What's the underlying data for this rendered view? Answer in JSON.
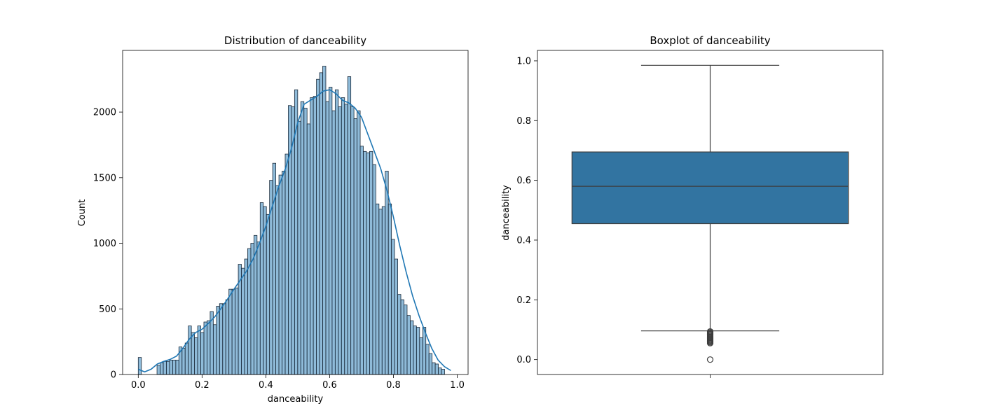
{
  "chart_data": [
    {
      "type": "bar",
      "subtype": "histogram-with-kde",
      "title": "Distribution of danceability",
      "xlabel": "danceability",
      "ylabel": "Count",
      "xlim": [
        -0.049,
        1.034
      ],
      "ylim": [
        0,
        2470
      ],
      "xticks": [
        "0.0",
        "0.2",
        "0.4",
        "0.6",
        "0.8",
        "1.0"
      ],
      "yticks": [
        "0",
        "500",
        "1000",
        "1500",
        "2000"
      ],
      "bin_start": 0.0,
      "bin_width": 0.0098,
      "bar_color": "#1f77b4",
      "values": [
        130,
        0,
        0,
        0,
        0,
        0,
        70,
        90,
        100,
        100,
        110,
        110,
        110,
        210,
        200,
        240,
        370,
        320,
        280,
        370,
        320,
        400,
        410,
        480,
        380,
        520,
        540,
        540,
        570,
        650,
        650,
        660,
        840,
        810,
        880,
        960,
        1000,
        1060,
        1010,
        1310,
        1280,
        1220,
        1480,
        1610,
        1440,
        1520,
        1550,
        1680,
        2050,
        2040,
        2170,
        1930,
        2080,
        2030,
        1910,
        2110,
        2120,
        2250,
        2300,
        2350,
        2080,
        2190,
        2010,
        2170,
        2040,
        2110,
        2060,
        2270,
        2040,
        1950,
        2010,
        1740,
        1700,
        1690,
        1700,
        1600,
        1300,
        1260,
        1280,
        1550,
        1300,
        1030,
        880,
        610,
        570,
        530,
        450,
        410,
        370,
        360,
        280,
        360,
        230,
        160,
        90,
        80,
        50,
        40
      ],
      "kde": [
        [
          0.0,
          40
        ],
        [
          0.02,
          20
        ],
        [
          0.04,
          40
        ],
        [
          0.06,
          80
        ],
        [
          0.08,
          100
        ],
        [
          0.1,
          115
        ],
        [
          0.12,
          140
        ],
        [
          0.14,
          200
        ],
        [
          0.16,
          270
        ],
        [
          0.18,
          320
        ],
        [
          0.2,
          345
        ],
        [
          0.22,
          390
        ],
        [
          0.24,
          440
        ],
        [
          0.26,
          505
        ],
        [
          0.28,
          575
        ],
        [
          0.3,
          650
        ],
        [
          0.32,
          720
        ],
        [
          0.34,
          790
        ],
        [
          0.36,
          880
        ],
        [
          0.38,
          1000
        ],
        [
          0.4,
          1130
        ],
        [
          0.42,
          1280
        ],
        [
          0.44,
          1430
        ],
        [
          0.46,
          1560
        ],
        [
          0.48,
          1720
        ],
        [
          0.5,
          1920
        ],
        [
          0.52,
          2060
        ],
        [
          0.54,
          2090
        ],
        [
          0.56,
          2120
        ],
        [
          0.58,
          2160
        ],
        [
          0.6,
          2170
        ],
        [
          0.62,
          2140
        ],
        [
          0.64,
          2090
        ],
        [
          0.66,
          2070
        ],
        [
          0.68,
          2030
        ],
        [
          0.7,
          1960
        ],
        [
          0.72,
          1830
        ],
        [
          0.74,
          1700
        ],
        [
          0.76,
          1570
        ],
        [
          0.78,
          1400
        ],
        [
          0.8,
          1200
        ],
        [
          0.82,
          980
        ],
        [
          0.84,
          780
        ],
        [
          0.86,
          600
        ],
        [
          0.88,
          450
        ],
        [
          0.9,
          320
        ],
        [
          0.92,
          200
        ],
        [
          0.94,
          110
        ],
        [
          0.96,
          60
        ],
        [
          0.98,
          30
        ]
      ]
    },
    {
      "type": "boxplot",
      "title": "Boxplot of danceability",
      "xlabel": "",
      "ylabel": "danceability",
      "ylim": [
        -0.05,
        1.035
      ],
      "yticks": [
        "0.0",
        "0.2",
        "0.4",
        "0.6",
        "0.8",
        "1.0"
      ],
      "box_color": "#3274a1",
      "whisker_low": 0.096,
      "q1": 0.455,
      "median": 0.58,
      "q3": 0.695,
      "whisker_high": 0.985,
      "outliers": [
        0.0,
        0.055,
        0.058,
        0.061,
        0.064,
        0.067,
        0.07,
        0.073,
        0.076,
        0.079,
        0.082,
        0.085,
        0.088,
        0.091,
        0.094
      ]
    }
  ]
}
